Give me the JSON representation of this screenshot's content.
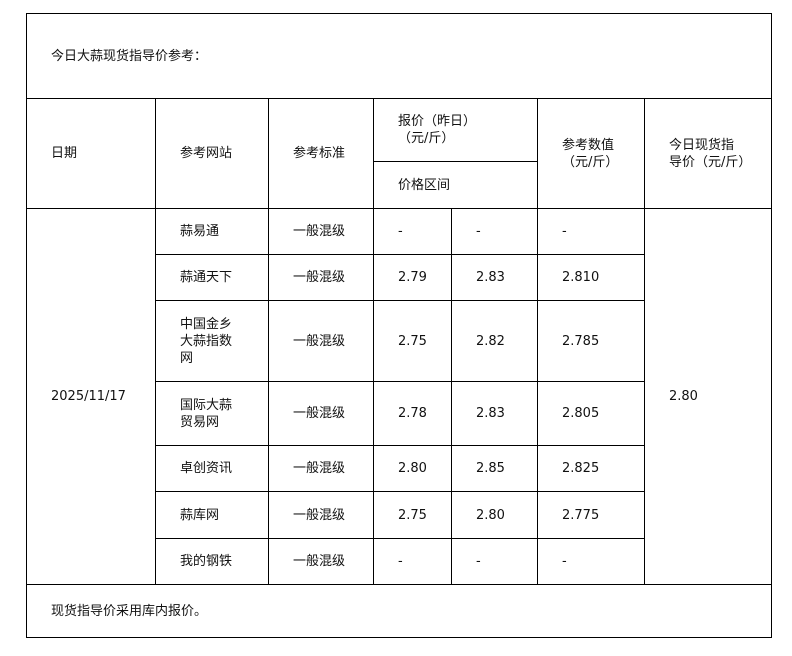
{
  "title": "今日大蒜现货指导价参考：",
  "headers": {
    "date": "日期",
    "site": "参考网站",
    "standard": "参考标准",
    "quote": "报价（昨日）（元/斤）",
    "range": "价格区间",
    "ref_value": "参考数值（元/斤）",
    "today_price": "今日现货指导价（元/斤）"
  },
  "date": "2025/11/17",
  "today_price": "2.80",
  "rows": [
    {
      "site": "蒜易通",
      "standard": "一般混级",
      "low": "-",
      "high": "-",
      "ref": "-"
    },
    {
      "site": "蒜通天下",
      "standard": "一般混级",
      "low": "2.79",
      "high": "2.83",
      "ref": "2.810"
    },
    {
      "site": "中国金乡大蒜指数网",
      "standard": "一般混级",
      "low": "2.75",
      "high": "2.82",
      "ref": "2.785"
    },
    {
      "site": "国际大蒜贸易网",
      "standard": "一般混级",
      "low": "2.78",
      "high": "2.83",
      "ref": "2.805"
    },
    {
      "site": "卓创资讯",
      "standard": "一般混级",
      "low": "2.80",
      "high": "2.85",
      "ref": "2.825"
    },
    {
      "site": "蒜库网",
      "standard": "一般混级",
      "low": "2.75",
      "high": "2.80",
      "ref": "2.775"
    },
    {
      "site": "我的钢铁",
      "standard": "一般混级",
      "low": "-",
      "high": "-",
      "ref": "-"
    }
  ],
  "footer": "现货指导价采用库内报价。"
}
